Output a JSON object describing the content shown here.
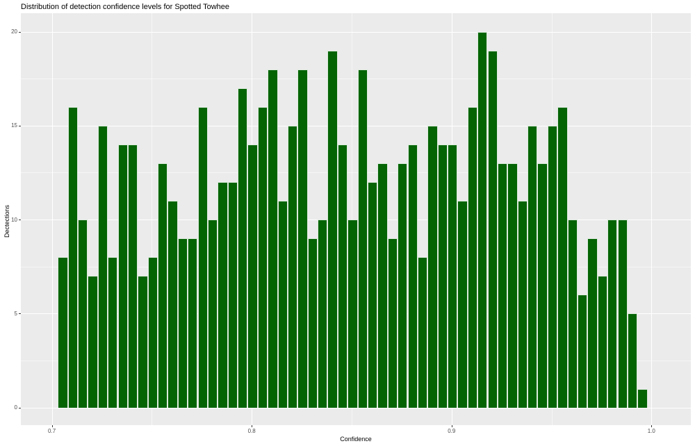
{
  "chart_data": {
    "type": "bar",
    "subtype": "histogram",
    "title": "Distribution of detection confidence levels for Spotted Towhee",
    "xlabel": "Confidence",
    "ylabel": "Dectections",
    "x_ticks": [
      0.7,
      0.8,
      0.9,
      1.0
    ],
    "x_tick_labels": [
      "0.7",
      "0.8",
      "0.9",
      "1.0"
    ],
    "x_minor_ticks": [
      0.75,
      0.85,
      0.95
    ],
    "y_ticks": [
      0,
      5,
      10,
      15,
      20
    ],
    "y_tick_labels": [
      "0",
      "5",
      "10",
      "15",
      "20"
    ],
    "y_minor_ticks": [
      2.5,
      7.5,
      12.5,
      17.5
    ],
    "xlim": [
      0.6845,
      1.0197
    ],
    "ylim": [
      -0.94,
      20.98
    ],
    "grid": true,
    "legend": "none",
    "bin_start": 0.703,
    "bin_width": 0.005,
    "counts": [
      8,
      16,
      10,
      7,
      15,
      8,
      14,
      14,
      7,
      8,
      13,
      11,
      9,
      9,
      16,
      10,
      12,
      12,
      17,
      14,
      16,
      18,
      11,
      15,
      18,
      9,
      10,
      19,
      14,
      10,
      18,
      12,
      13,
      9,
      13,
      14,
      8,
      15,
      14,
      14,
      11,
      16,
      20,
      19,
      13,
      13,
      11,
      15,
      13,
      15,
      16,
      10,
      6,
      9,
      7,
      10,
      10,
      5,
      1
    ],
    "colors": {
      "bar_fill": "#046404",
      "bar_edge": "#dcebdc",
      "panel_background": "#ebebeb",
      "gridline": "#ffffff",
      "tick_text": "#4d4d4d",
      "title_text": "#000000"
    }
  }
}
